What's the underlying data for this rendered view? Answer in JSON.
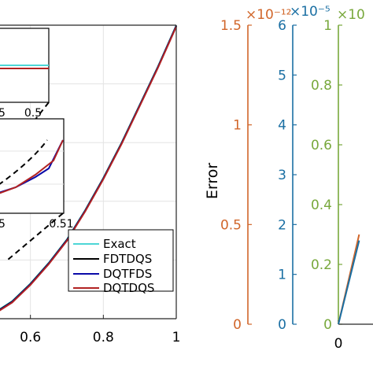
{
  "colors": {
    "exact": "#4dd6d6",
    "fdtdqs": "#000000",
    "dqtfds": "#0a0aa8",
    "dqtdqs": "#b22222",
    "axis_orange": "#d1662a",
    "axis_blue": "#1a6fa3",
    "axis_green": "#78a83c"
  },
  "chart_data": [
    {
      "type": "line",
      "panel": "left",
      "xlim": [
        0.4,
        1.0
      ],
      "ylim": [
        0.0,
        1.0
      ],
      "x_ticks": [
        "0.6",
        "0.8",
        "1"
      ],
      "grid": true,
      "legend_position": "bottom-right",
      "series": [
        {
          "name": "Exact",
          "color_key": "exact",
          "x": [
            0.4,
            0.45,
            0.5,
            0.55,
            0.6,
            0.65,
            0.7,
            0.75,
            0.8,
            0.85,
            0.9,
            0.95,
            1.0
          ],
          "y": [
            0.0,
            0.0,
            0.02,
            0.06,
            0.12,
            0.19,
            0.27,
            0.37,
            0.48,
            0.6,
            0.73,
            0.86,
            1.0
          ]
        },
        {
          "name": "FDTDQS",
          "color_key": "fdtdqs",
          "x": [
            0.4,
            0.45,
            0.5,
            0.55,
            0.6,
            0.65,
            0.7,
            0.75,
            0.8,
            0.85,
            0.9,
            0.95,
            1.0
          ],
          "y": [
            0.0,
            0.0,
            0.02,
            0.06,
            0.12,
            0.19,
            0.27,
            0.37,
            0.48,
            0.6,
            0.73,
            0.86,
            1.0
          ]
        },
        {
          "name": "DQTFDS",
          "color_key": "dqtfds",
          "x": [
            0.4,
            0.45,
            0.5,
            0.55,
            0.6,
            0.65,
            0.7,
            0.75,
            0.8,
            0.85,
            0.9,
            0.95,
            1.0
          ],
          "y": [
            0.0,
            0.0,
            0.02,
            0.06,
            0.12,
            0.19,
            0.27,
            0.37,
            0.48,
            0.6,
            0.73,
            0.86,
            1.0
          ]
        },
        {
          "name": "DQTDQS",
          "color_key": "dqtdqs",
          "x": [
            0.4,
            0.45,
            0.5,
            0.55,
            0.6,
            0.65,
            0.7,
            0.75,
            0.8,
            0.85,
            0.9,
            0.95,
            1.0
          ],
          "y": [
            0.0,
            0.0,
            0.02,
            0.06,
            0.12,
            0.19,
            0.27,
            0.37,
            0.48,
            0.6,
            0.73,
            0.86,
            1.0
          ]
        }
      ],
      "insets": [
        {
          "x_tick_labels": [
            "5",
            "0.5"
          ],
          "note": "zoom of curves near bottom"
        },
        {
          "x_tick_labels": [
            "5",
            "0.51"
          ],
          "note": "zoom of curves"
        }
      ]
    },
    {
      "type": "line",
      "panel": "right",
      "ylabel": "Error",
      "x_ticks": [
        "0"
      ],
      "axes": [
        {
          "color_key": "axis_orange",
          "ylim": [
            0,
            1.5
          ],
          "ticks": [
            "0",
            "0.5",
            "1",
            "1.5"
          ],
          "exponent": "×10⁻¹²"
        },
        {
          "color_key": "axis_blue",
          "ylim": [
            0,
            6
          ],
          "ticks": [
            "0",
            "1",
            "2",
            "3",
            "4",
            "5",
            "6"
          ],
          "exponent": "×10⁻⁵"
        },
        {
          "color_key": "axis_green",
          "ylim": [
            0,
            1.0
          ],
          "ticks": [
            "0",
            "0.2",
            "0.4",
            "0.6",
            "0.8",
            "1"
          ],
          "exponent": "×10"
        }
      ],
      "series": [
        {
          "color_key": "axis_orange",
          "x": [
            0,
            0.5
          ],
          "y_norm": [
            0,
            0.3
          ]
        },
        {
          "color_key": "axis_blue",
          "x": [
            0,
            0.5
          ],
          "y_norm": [
            0,
            0.28
          ]
        }
      ]
    }
  ]
}
